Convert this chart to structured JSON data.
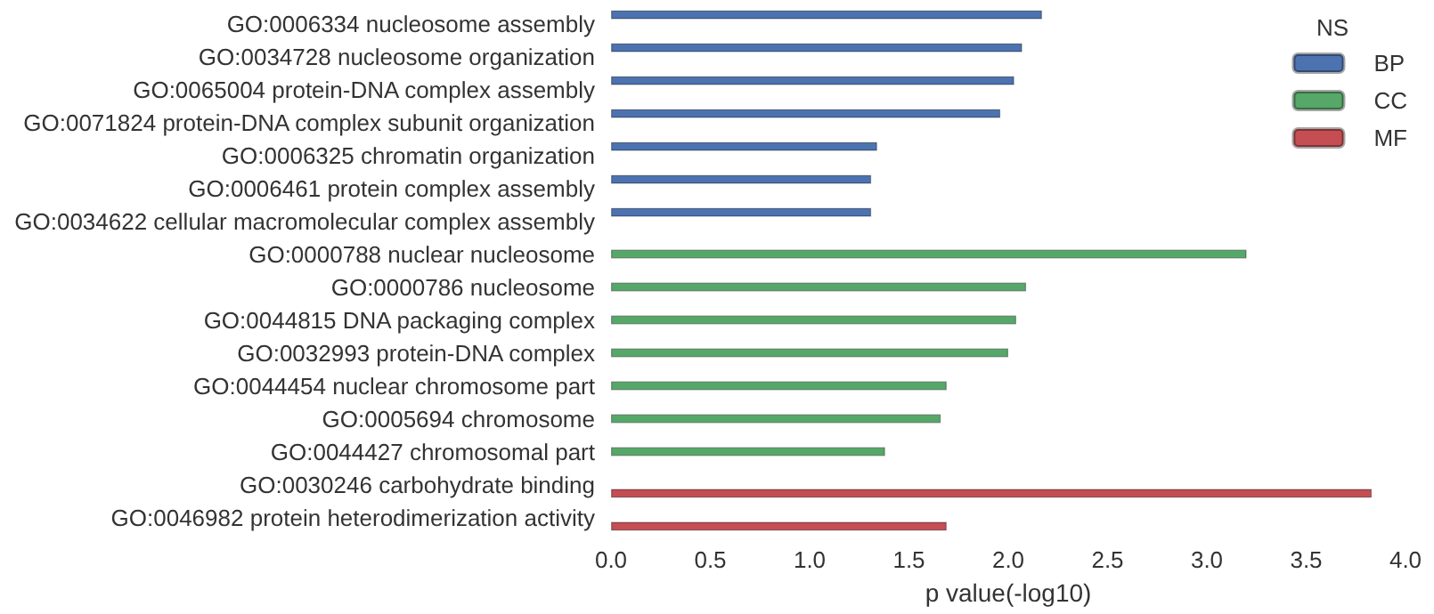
{
  "chart_data": {
    "type": "bar",
    "orientation": "horizontal",
    "xlabel": "p value(-log10)",
    "legend_title": "NS",
    "legend": "top right",
    "grid": false,
    "categories": [
      "GO:0006334 nucleosome assembly",
      "GO:0034728 nucleosome organization",
      "GO:0065004 protein-DNA complex assembly",
      "GO:0071824 protein-DNA complex subunit organization",
      "GO:0006325 chromatin organization",
      "GO:0006461 protein complex assembly",
      "GO:0034622 cellular macromolecular complex assembly",
      "GO:0000788 nuclear nucleosome",
      "GO:0000786 nucleosome",
      "GO:0044815 DNA packaging complex",
      "GO:0032993 protein-DNA complex",
      "GO:0044454 nuclear chromosome part",
      "GO:0005694 chromosome",
      "GO:0044427 chromosomal part",
      "GO:0030246 carbohydrate binding",
      "GO:0046982 protein heterodimerization activity"
    ],
    "series": [
      {
        "name": "BP",
        "color": "#4c72b0",
        "values": [
          2.17,
          2.07,
          2.03,
          1.96,
          1.34,
          1.31,
          1.31,
          null,
          null,
          null,
          null,
          null,
          null,
          null,
          null,
          null
        ]
      },
      {
        "name": "CC",
        "color": "#55a868",
        "values": [
          null,
          null,
          null,
          null,
          null,
          null,
          null,
          3.2,
          2.09,
          2.04,
          2.0,
          1.69,
          1.66,
          1.38,
          null,
          null
        ]
      },
      {
        "name": "MF",
        "color": "#c44e52",
        "values": [
          null,
          null,
          null,
          null,
          null,
          null,
          null,
          null,
          null,
          null,
          null,
          null,
          null,
          null,
          3.83,
          1.69
        ]
      }
    ],
    "xlim": [
      0,
      4
    ],
    "xticks": [
      {
        "value": 0,
        "label": "0.0"
      },
      0.5,
      {
        "value": 1,
        "label": "1.0"
      },
      1.5,
      {
        "value": 2,
        "label": "2.0"
      },
      2.5,
      {
        "value": 3,
        "label": "3.0"
      },
      3.5,
      {
        "value": 4,
        "label": "4.0"
      }
    ]
  }
}
